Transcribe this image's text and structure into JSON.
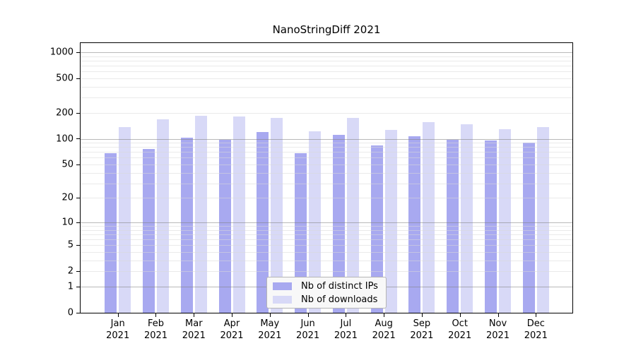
{
  "chart_data": {
    "type": "bar",
    "title": "NanoStringDiff 2021",
    "categories": [
      "Jan",
      "Feb",
      "Mar",
      "Apr",
      "May",
      "Jun",
      "Jul",
      "Aug",
      "Sep",
      "Oct",
      "Nov",
      "Dec"
    ],
    "x_sublabel": "2021",
    "series": [
      {
        "name": "Nb of distinct IPs",
        "color": "#a8a9f0",
        "values": [
          68,
          76,
          102,
          97,
          119,
          68,
          112,
          84,
          107,
          98,
          96,
          91
        ]
      },
      {
        "name": "Nb of downloads",
        "color": "#d8d9f7",
        "values": [
          137,
          169,
          184,
          182,
          176,
          121,
          173,
          127,
          156,
          146,
          130,
          136
        ]
      }
    ],
    "yticks": [
      0,
      1,
      2,
      5,
      10,
      20,
      50,
      100,
      200,
      500,
      1000
    ],
    "yscale": "log10(1+y)",
    "ylim": [
      0,
      1280
    ],
    "grid": {
      "major_color": "#808080",
      "minor_color": "#d9d9d9",
      "opacity": 0.55
    },
    "legend_position": "inside-bottom-center",
    "axis_color": "#000000",
    "text_color": "#000000",
    "background_color": "#ffffff"
  }
}
